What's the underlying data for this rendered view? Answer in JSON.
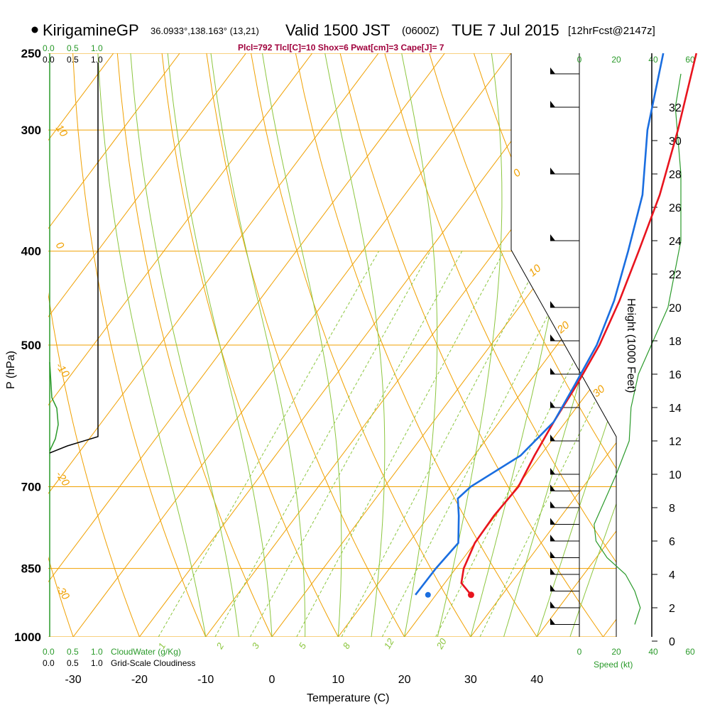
{
  "header": {
    "station": "KirigamineGP",
    "coords": "36.0933°,138.163° (13,21)",
    "valid": "Valid 1500 JST",
    "zulu": "(0600Z)",
    "date": "TUE 7 Jul 2015",
    "fcst": "[12hrFcst@2147z]",
    "indices": "Plcl=792 Tlcl[C]=10 Shox=6 Pwat[cm]=3 Cape[J]= 7"
  },
  "chart_data": {
    "type": "line",
    "title": "KirigamineGP Valid 1500 JST (0600Z) TUE 7 Jul 2015",
    "xlabel": "Temperature (C)",
    "ylabel": "P (hPa)",
    "y2label": "Height (1000 Feet)",
    "x_ticks": [
      -30,
      -20,
      -10,
      0,
      10,
      20,
      30,
      40
    ],
    "p_ticks": [
      250,
      300,
      400,
      500,
      700,
      850,
      1000
    ],
    "height_ticks": [
      0,
      2,
      4,
      6,
      8,
      10,
      12,
      14,
      16,
      18,
      20,
      22,
      24,
      26,
      28,
      30,
      32
    ],
    "speed_ticks": [
      0,
      20,
      40,
      60
    ],
    "cloud_ticks": [
      "0.0",
      "0.5",
      "1.0"
    ],
    "cloud_labels": {
      "top_green": [
        "0.0",
        "0.5",
        "1.0"
      ],
      "top_black": [
        "0.0",
        "0.5",
        "1.0"
      ]
    },
    "isotherm_labels": [
      "10",
      "0",
      "-10",
      "-20",
      "-30"
    ],
    "adiabat_labels": [
      "0",
      "10",
      "20",
      "30"
    ],
    "mixing_ratio_labels": [
      "1",
      "2",
      "3",
      "5",
      "8",
      "12",
      "20"
    ],
    "cloud_water_label": "CloudWater (g/Kg)",
    "cloudiness_label": "Grid-Scale Cloudiness",
    "speed_label": "Speed (kt)",
    "series": [
      {
        "name": "temperature",
        "color": "#e8141e",
        "points": [
          {
            "p": 905,
            "t": 25.3
          },
          {
            "p": 880,
            "t": 22.5
          },
          {
            "p": 850,
            "t": 21.2
          },
          {
            "p": 800,
            "t": 20.0
          },
          {
            "p": 750,
            "t": 19.8
          },
          {
            "p": 700,
            "t": 20.2
          },
          {
            "p": 650,
            "t": 19.1
          },
          {
            "p": 600,
            "t": 18.2
          },
          {
            "p": 550,
            "t": 17.5
          },
          {
            "p": 500,
            "t": 16.4
          },
          {
            "p": 450,
            "t": 14.4
          },
          {
            "p": 400,
            "t": 11.7
          },
          {
            "p": 350,
            "t": 8.5
          },
          {
            "p": 300,
            "t": 3.9
          },
          {
            "p": 250,
            "t": -2.0
          }
        ]
      },
      {
        "name": "dewpoint",
        "color": "#1a6ee0",
        "points": [
          {
            "p": 905,
            "t": 16.9
          },
          {
            "p": 850,
            "t": 17.0
          },
          {
            "p": 800,
            "t": 17.5
          },
          {
            "p": 750,
            "t": 14.5
          },
          {
            "p": 720,
            "t": 12.4
          },
          {
            "p": 700,
            "t": 13.0
          },
          {
            "p": 650,
            "t": 17.0
          },
          {
            "p": 600,
            "t": 18.2
          },
          {
            "p": 550,
            "t": 17.2
          },
          {
            "p": 500,
            "t": 16.0
          },
          {
            "p": 450,
            "t": 13.6
          },
          {
            "p": 400,
            "t": 10.1
          },
          {
            "p": 350,
            "t": 5.9
          },
          {
            "p": 300,
            "t": -0.7
          },
          {
            "p": 250,
            "t": -7.0
          }
        ]
      },
      {
        "name": "surface-dewpoint-point",
        "color": "#1a6ee0",
        "points": [
          {
            "p": 905,
            "t": 18.8
          }
        ]
      }
    ],
    "wind_speed_kt": [
      {
        "height_kft": 1.0,
        "speed": 30
      },
      {
        "height_kft": 2.0,
        "speed": 33
      },
      {
        "height_kft": 3.0,
        "speed": 30
      },
      {
        "height_kft": 4.0,
        "speed": 25
      },
      {
        "height_kft": 5.0,
        "speed": 15
      },
      {
        "height_kft": 6.0,
        "speed": 9
      },
      {
        "height_kft": 7.0,
        "speed": 8
      },
      {
        "height_kft": 8.0,
        "speed": 12
      },
      {
        "height_kft": 9.0,
        "speed": 16
      },
      {
        "height_kft": 10.0,
        "speed": 20
      },
      {
        "height_kft": 12.0,
        "speed": 27
      },
      {
        "height_kft": 14.0,
        "speed": 28
      },
      {
        "height_kft": 16.0,
        "speed": 32
      },
      {
        "height_kft": 18.0,
        "speed": 40
      },
      {
        "height_kft": 20.0,
        "speed": 48
      },
      {
        "height_kft": 24.0,
        "speed": 55
      },
      {
        "height_kft": 28.0,
        "speed": 55
      },
      {
        "height_kft": 32.0,
        "speed": 52
      },
      {
        "height_kft": 34.0,
        "speed": 55
      }
    ]
  }
}
